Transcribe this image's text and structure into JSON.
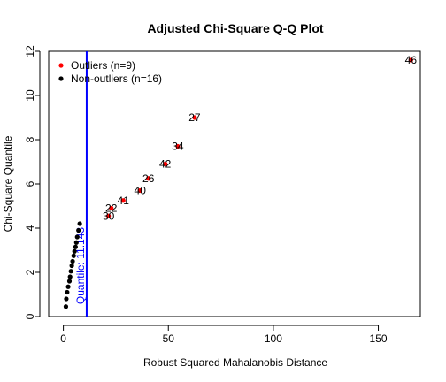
{
  "chart_data": {
    "type": "scatter",
    "title": "Adjusted Chi-Square Q-Q Plot",
    "xlabel": "Robust Squared Mahalanobis Distance",
    "ylabel": "Chi-Square Quantile",
    "xlim": [
      -7,
      170
    ],
    "ylim": [
      0,
      12
    ],
    "xticks": [
      0,
      50,
      100,
      150
    ],
    "yticks": [
      0,
      2,
      4,
      6,
      8,
      10,
      12
    ],
    "grid": false,
    "legend_position": "top-left",
    "legend": [
      {
        "label": "Outliers (n=9)",
        "color": "#ff0000"
      },
      {
        "label": "Non-outliers (n=16)",
        "color": "#000000"
      }
    ],
    "cutoff": {
      "x": 11.1,
      "label": "Quantile: 11.143",
      "color": "#0000ff"
    },
    "series": [
      {
        "name": "Outliers (n=9)",
        "color": "#ff0000",
        "points": [
          {
            "x": 21.5,
            "y": 4.55,
            "label": "30"
          },
          {
            "x": 22.8,
            "y": 4.9,
            "label": "22"
          },
          {
            "x": 28.5,
            "y": 5.25,
            "label": "41"
          },
          {
            "x": 36.5,
            "y": 5.7,
            "label": "40"
          },
          {
            "x": 40.5,
            "y": 6.25,
            "label": "26"
          },
          {
            "x": 48.5,
            "y": 6.9,
            "label": "42"
          },
          {
            "x": 54.5,
            "y": 7.7,
            "label": "34"
          },
          {
            "x": 62.5,
            "y": 9.0,
            "label": "27"
          },
          {
            "x": 165.5,
            "y": 11.6,
            "label": "46"
          }
        ]
      },
      {
        "name": "Non-outliers (n=16)",
        "color": "#000000",
        "points": [
          {
            "x": 1.2,
            "y": 0.45
          },
          {
            "x": 1.4,
            "y": 0.8
          },
          {
            "x": 1.8,
            "y": 1.1
          },
          {
            "x": 2.3,
            "y": 1.35
          },
          {
            "x": 2.9,
            "y": 1.6
          },
          {
            "x": 3.2,
            "y": 1.8
          },
          {
            "x": 3.6,
            "y": 2.05
          },
          {
            "x": 4.0,
            "y": 2.3
          },
          {
            "x": 4.4,
            "y": 2.5
          },
          {
            "x": 4.9,
            "y": 2.75
          },
          {
            "x": 5.3,
            "y": 2.95
          },
          {
            "x": 5.8,
            "y": 3.15
          },
          {
            "x": 6.2,
            "y": 3.35
          },
          {
            "x": 6.6,
            "y": 3.6
          },
          {
            "x": 7.2,
            "y": 3.9
          },
          {
            "x": 7.8,
            "y": 4.2
          }
        ]
      }
    ]
  }
}
